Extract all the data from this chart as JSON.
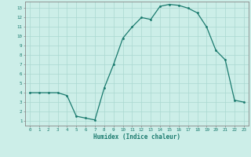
{
  "x": [
    0,
    1,
    2,
    3,
    4,
    5,
    6,
    7,
    8,
    9,
    10,
    11,
    12,
    13,
    14,
    15,
    16,
    17,
    18,
    19,
    20,
    21,
    22,
    23
  ],
  "y": [
    4,
    4,
    4,
    4,
    3.7,
    1.5,
    1.3,
    1.1,
    4.5,
    7,
    9.8,
    11,
    12,
    11.8,
    13.2,
    13.4,
    13.3,
    13,
    12.5,
    11,
    8.5,
    7.5,
    3.2,
    3.0
  ],
  "xlabel": "Humidex (Indice chaleur)",
  "xlim": [
    -0.5,
    23.5
  ],
  "ylim": [
    0.5,
    13.7
  ],
  "yticks": [
    1,
    2,
    3,
    4,
    5,
    6,
    7,
    8,
    9,
    10,
    11,
    12,
    13
  ],
  "xticks": [
    0,
    1,
    2,
    3,
    4,
    5,
    6,
    7,
    8,
    9,
    10,
    11,
    12,
    13,
    14,
    15,
    16,
    17,
    18,
    19,
    20,
    21,
    22,
    23
  ],
  "line_color": "#1a7a6e",
  "marker_color": "#1a7a6e",
  "bg_color": "#cceee8",
  "grid_color": "#aad8d0",
  "text_color": "#1a7a6e",
  "spine_color": "#888888"
}
